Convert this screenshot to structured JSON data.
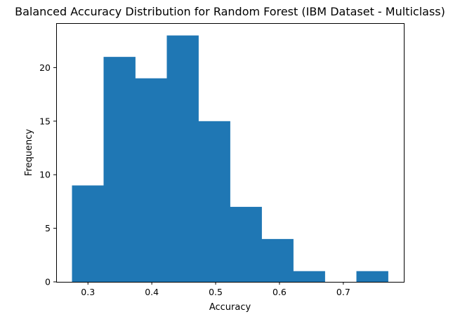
{
  "chart_data": {
    "type": "bar",
    "subtype": "histogram",
    "title": "Balanced Accuracy Distribution for Random Forest (IBM Dataset - Multiclass)",
    "xlabel": "Accuracy",
    "ylabel": "Frequency",
    "bin_edges": [
      0.275,
      0.3245,
      0.374,
      0.4235,
      0.473,
      0.5225,
      0.572,
      0.6215,
      0.671,
      0.7205,
      0.77
    ],
    "values": [
      9,
      21,
      19,
      23,
      15,
      7,
      4,
      1,
      0,
      1
    ],
    "xlim": [
      0.25025,
      0.79475
    ],
    "ylim": [
      0,
      24.15
    ],
    "xticks": [
      0.3,
      0.4,
      0.5,
      0.6,
      0.7
    ],
    "xtick_labels": [
      "0.3",
      "0.4",
      "0.5",
      "0.6",
      "0.7"
    ],
    "yticks": [
      0,
      5,
      10,
      15,
      20
    ],
    "ytick_labels": [
      "0",
      "5",
      "10",
      "15",
      "20"
    ],
    "bar_color": "#1f77b4",
    "grid": false,
    "legend": null
  }
}
